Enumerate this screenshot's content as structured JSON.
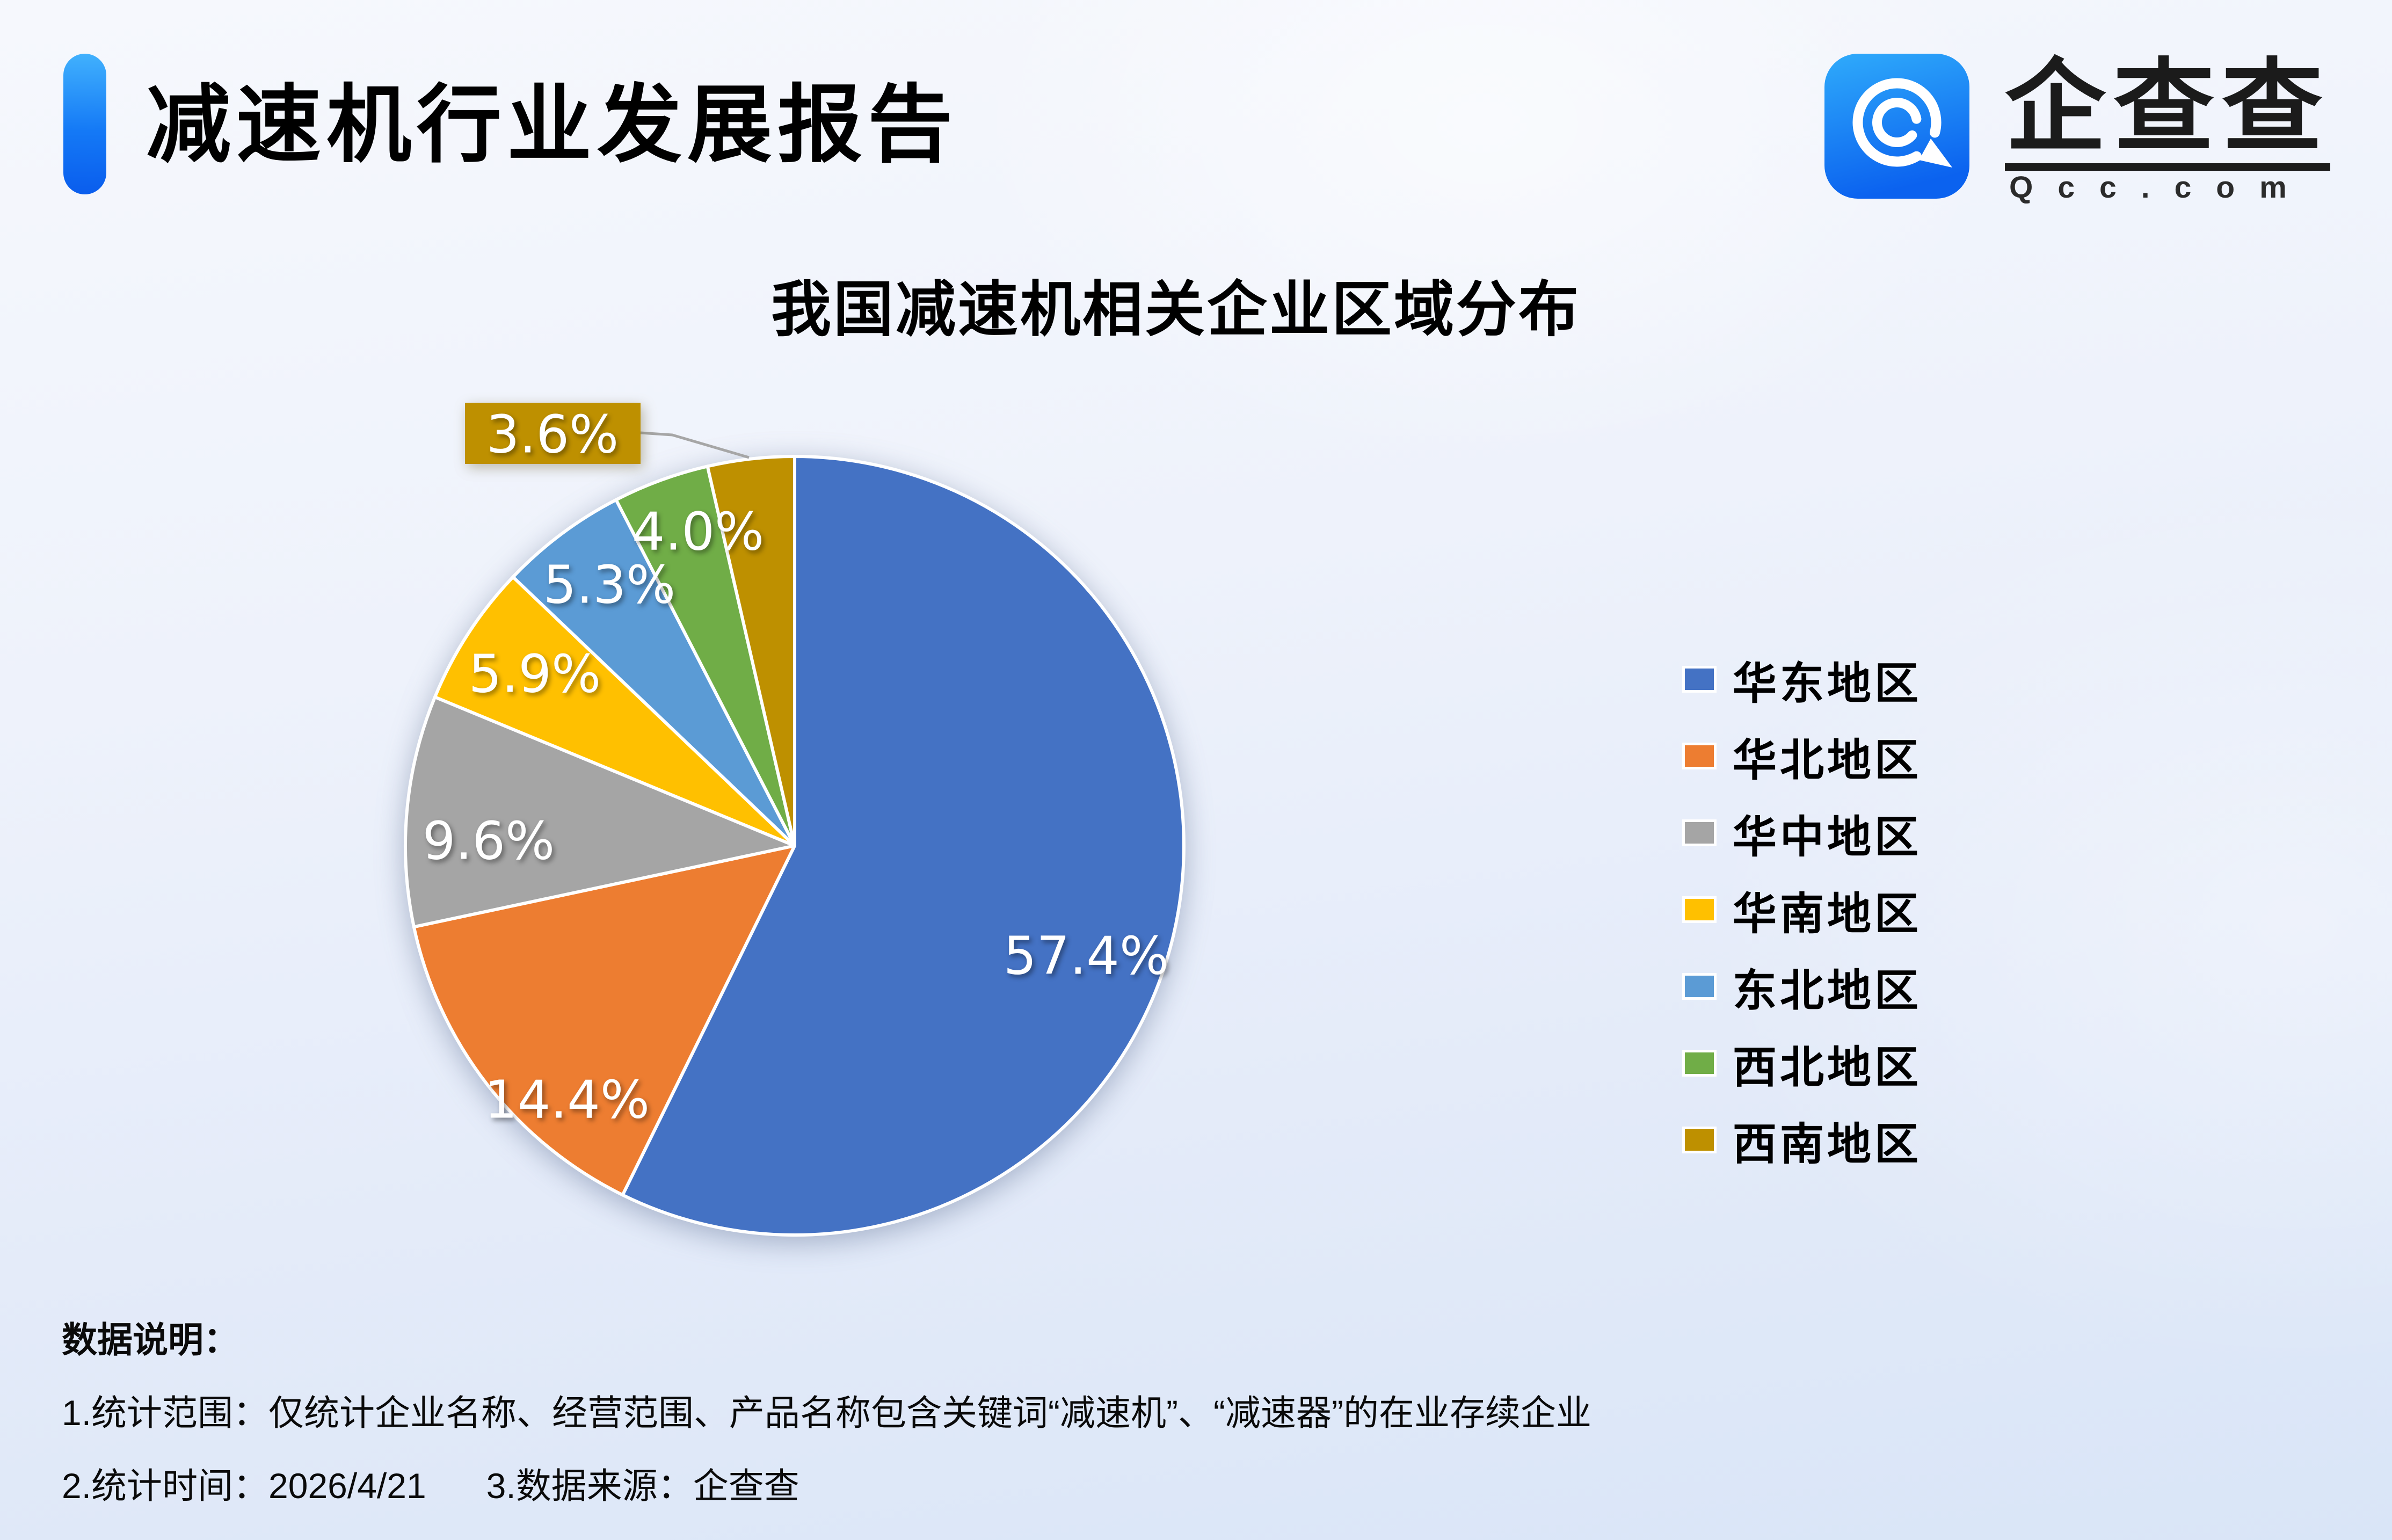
{
  "header": {
    "title": "减速机行业发展报告"
  },
  "logo": {
    "brand_chars": [
      "企",
      "查",
      "查"
    ],
    "brand": "企查查",
    "domain": "Qcc.com",
    "icon": "qcc-spiral-q-icon",
    "icon_color_top": "#2fabfb",
    "icon_color_bottom": "#0b62ef"
  },
  "theme": {
    "accent_bar_blue": "#1479f6",
    "background_top": "#f6f8fd",
    "background_bottom": "#d9e5f7"
  },
  "chart_data": {
    "type": "pie",
    "title": "我国减速机相关企业区域分布",
    "categories": [
      "华东地区",
      "华北地区",
      "华中地区",
      "华南地区",
      "东北地区",
      "西北地区",
      "西南地区"
    ],
    "values": [
      57.4,
      14.4,
      9.6,
      5.9,
      5.3,
      4.0,
      3.6
    ],
    "labels": [
      "57.4%",
      "14.4%",
      "9.6%",
      "5.9%",
      "5.3%",
      "4.0%",
      "3.6%"
    ],
    "colors": [
      "#4472C4",
      "#ED7D31",
      "#A5A5A5",
      "#FFC000",
      "#5B9BD5",
      "#70AD47",
      "#BE9000"
    ],
    "unit": "%",
    "start_angle_deg": 0,
    "direction": "clockwise",
    "legend_position": "right",
    "label_style": "inside-white",
    "callout_index": 6,
    "callout_label": "3.6%"
  },
  "footer": {
    "heading": "数据说明：",
    "line1": "1.统计范围：仅统计企业名称、经营范围、产品名称包含关键词“减速机”、“减速器”的在业存续企业",
    "stat_time": "2.统计时间：2026/4/21",
    "source": "3.数据来源：企查查"
  }
}
